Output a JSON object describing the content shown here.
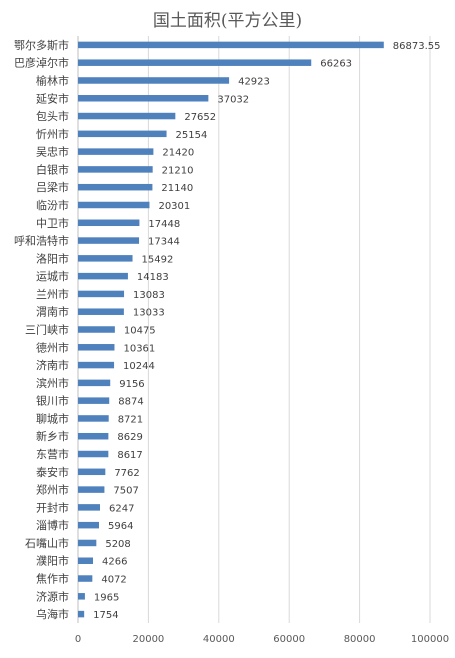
{
  "chart_data": {
    "type": "bar",
    "orientation": "horizontal",
    "title": "国土面积(平方公里)",
    "xlabel": "",
    "ylabel": "",
    "xlim": [
      0,
      100000
    ],
    "xticks": [
      "0",
      "20000",
      "40000",
      "60000",
      "80000",
      "100000"
    ],
    "grid": true,
    "bar_color": "#4f81bd",
    "categories": [
      "鄂尔多斯市",
      "巴彦淖尔市",
      "榆林市",
      "延安市",
      "包头市",
      "忻州市",
      "吴忠市",
      "白银市",
      "吕梁市",
      "临汾市",
      "中卫市",
      "呼和浩特市",
      "洛阳市",
      "运城市",
      "兰州市",
      "渭南市",
      "三门峡市",
      "德州市",
      "济南市",
      "滨州市",
      "银川市",
      "聊城市",
      "新乡市",
      "东营市",
      "泰安市",
      "郑州市",
      "开封市",
      "淄博市",
      "石嘴山市",
      "濮阳市",
      "焦作市",
      "济源市",
      "乌海市"
    ],
    "values": [
      86873.55,
      66263,
      42923,
      37032,
      27652,
      25154,
      21420,
      21210,
      21140,
      20301,
      17448,
      17344,
      15492,
      14183,
      13083,
      13033,
      10475,
      10361,
      10244,
      9156,
      8874,
      8721,
      8629,
      8617,
      7762,
      7507,
      6247,
      5964,
      5208,
      4266,
      4072,
      1965,
      1754
    ],
    "value_labels": [
      "86873.55",
      "66263",
      "42923",
      "37032",
      "27652",
      "25154",
      "21420",
      "21210",
      "21140",
      "20301",
      "17448",
      "17344",
      "15492",
      "14183",
      "13083",
      "13033",
      "10475",
      "10361",
      "10244",
      "9156",
      "8874",
      "8721",
      "8629",
      "8617",
      "7762",
      "7507",
      "6247",
      "5964",
      "5208",
      "4266",
      "4072",
      "1965",
      "1754"
    ]
  }
}
